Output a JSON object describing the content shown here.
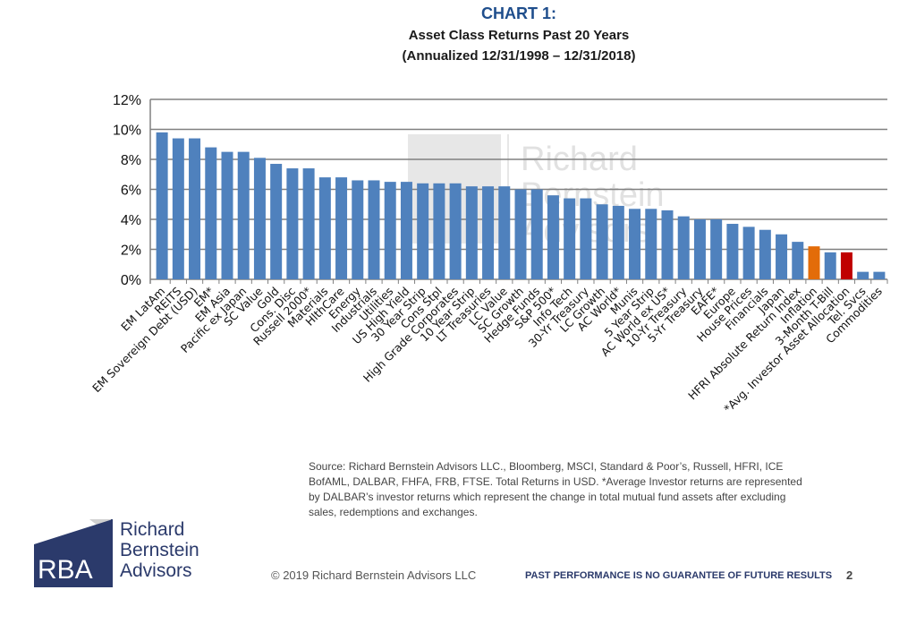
{
  "header": {
    "chart_number": "CHART 1:",
    "subtitle": "Asset Class Returns Past 20 Years",
    "period": "(Annualized 12/31/1998 – 12/31/2018)"
  },
  "chart_data": {
    "type": "bar",
    "title": "Asset Class Returns Past 20 Years",
    "ylim": [
      0,
      12
    ],
    "yticks": [
      "0%",
      "2%",
      "4%",
      "6%",
      "8%",
      "10%",
      "12%"
    ],
    "grid": true,
    "categories": [
      "EM LatAm",
      "REITS",
      "EM Sovereign Debt (USD)",
      "EM*",
      "EM Asia",
      "Pacific ex Japan",
      "SC Value",
      "Gold",
      "Cons. Disc",
      "Russell 2000*",
      "Materials",
      "HlthCare",
      "Energy",
      "Industrials",
      "Utilities",
      "US High Yield",
      "30 Year Strip",
      "Cons Stpl",
      "High Grade Corporates",
      "10 Year Strip",
      "LT Treasuries",
      "LC Value",
      "SC Growth",
      "Hedge Funds",
      "S&P 500*",
      "Info Tech",
      "30-Yr Treasury",
      "LC Growth",
      "AC World*",
      "Munis",
      "5 Year Strip",
      "AC World ex US*",
      "10-Yr Treasury",
      "5-Yr Treasury",
      "EAFE*",
      "Europe",
      "House Prices",
      "Financials",
      "Japan",
      "HFRI Absolute Return Index",
      "Inflation",
      "3-Month T-Bill",
      "*Avg. Investor Asset Allocation",
      "Tel. Svcs",
      "Commodities"
    ],
    "values": [
      9.8,
      9.4,
      9.4,
      8.8,
      8.5,
      8.5,
      8.1,
      7.7,
      7.4,
      7.4,
      6.8,
      6.8,
      6.6,
      6.6,
      6.5,
      6.5,
      6.4,
      6.4,
      6.4,
      6.2,
      6.2,
      6.2,
      6.0,
      6.0,
      5.6,
      5.4,
      5.4,
      5.0,
      4.9,
      4.7,
      4.7,
      4.6,
      4.2,
      4.0,
      4.0,
      3.7,
      3.5,
      3.3,
      3.0,
      2.5,
      2.2,
      1.8,
      1.8,
      0.5,
      0.5
    ],
    "colors": {
      "default": "#4f81bd",
      "Inflation": "#e36c09",
      "*Avg. Investor Asset Allocation": "#c00000"
    }
  },
  "footer": {
    "source": "Source: Richard Bernstein Advisors LLC., Bloomberg, MSCI, Standard & Poor’s, Russell, HFRI, ICE BofAML, DALBAR, FHFA, FRB, FTSE.  Total Returns in USD. *Average Investor returns are represented by DALBAR’s investor returns which represent the change in total mutual fund assets after excluding sales, redemptions and exchanges.",
    "copyright": "© 2019   Richard Bernstein Advisors LLC",
    "disclaimer": "PAST PERFORMANCE IS NO GUARANTEE OF FUTURE RESULTS",
    "page_number": "2",
    "logo": {
      "mark": "RBA",
      "line1": "Richard",
      "line2": "Bernstein",
      "line3": "Advisors"
    }
  }
}
